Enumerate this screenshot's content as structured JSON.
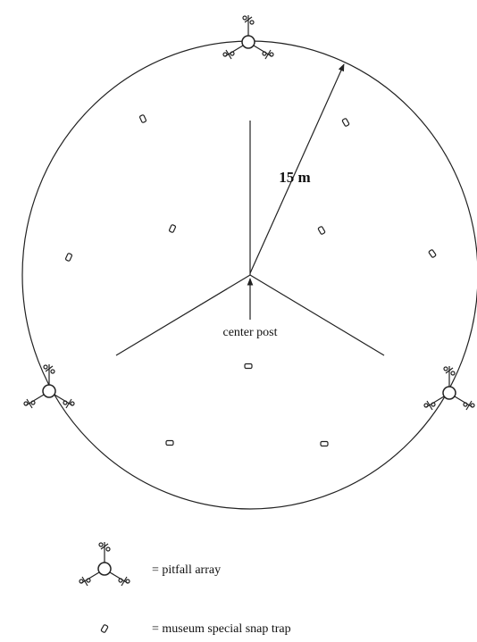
{
  "labels": {
    "radius": "15 m",
    "center": "center post"
  },
  "legend": {
    "pitfall": "= pitfall array",
    "snap_trap": "= museum special snap trap"
  }
}
